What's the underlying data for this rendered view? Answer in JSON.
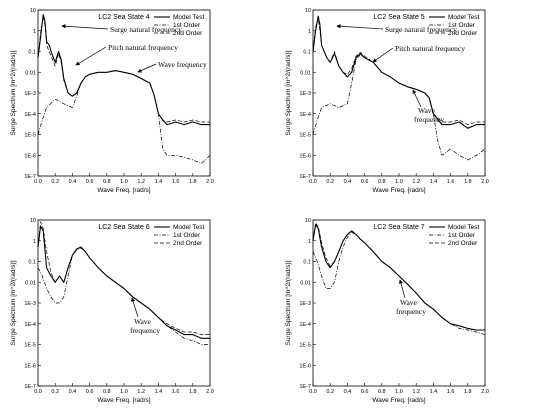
{
  "chart_data": [
    {
      "type": "line",
      "title": "LC2 Sea State 4",
      "xlabel": "Wave Freq. [rad/s]",
      "ylabel": "Surge Spectrum [m^2/(rad/s)]",
      "xlim": [
        0.0,
        2.0
      ],
      "ylim": [
        1e-07,
        10
      ],
      "yscale": "log",
      "xticks": [
        "0.0",
        "0.2",
        "0.4",
        "0.6",
        "0.8",
        "1.0",
        "1.2",
        "1.4",
        "1.6",
        "1.8",
        "2.0"
      ],
      "yticks": [
        "1E-7",
        "1E-6",
        "1E-5",
        "1E-4",
        "1E-3",
        "0.01",
        "0.1",
        "1",
        "10"
      ],
      "legend": "top-right",
      "annotations": [
        "Surge natural frequency",
        "Pitch natural frequency",
        "Wave frequency"
      ],
      "series": [
        {
          "name": "Model Test",
          "style": "solid",
          "x": [
            0.0,
            0.03,
            0.06,
            0.08,
            0.1,
            0.13,
            0.16,
            0.2,
            0.24,
            0.27,
            0.3,
            0.35,
            0.4,
            0.45,
            0.5,
            0.55,
            0.6,
            0.7,
            0.8,
            0.9,
            1.0,
            1.1,
            1.2,
            1.3,
            1.35,
            1.4,
            1.45,
            1.5,
            1.6,
            1.7,
            1.8,
            1.9,
            2.0
          ],
          "y": [
            0.05,
            0.5,
            6,
            3,
            0.3,
            0.2,
            0.08,
            0.03,
            0.1,
            0.04,
            0.005,
            0.001,
            0.0007,
            0.001,
            0.003,
            0.006,
            0.008,
            0.01,
            0.01,
            0.012,
            0.01,
            0.008,
            0.005,
            0.003,
            0.0008,
            0.0001,
            5e-05,
            3e-05,
            4e-05,
            3e-05,
            4e-05,
            3e-05,
            3e-05
          ]
        },
        {
          "name": "1st Order",
          "style": "dashdot",
          "x": [
            0.0,
            0.05,
            0.1,
            0.2,
            0.3,
            0.4,
            0.45,
            0.5,
            0.55,
            0.6,
            0.7,
            0.8,
            0.9,
            1.0,
            1.1,
            1.2,
            1.3,
            1.35,
            1.4,
            1.45,
            1.5,
            1.6,
            1.7,
            1.8,
            1.9,
            2.0
          ],
          "y": [
            1e-05,
            5e-05,
            0.0002,
            0.0005,
            0.0003,
            0.0002,
            0.0007,
            0.003,
            0.006,
            0.008,
            0.01,
            0.01,
            0.012,
            0.01,
            0.008,
            0.005,
            0.003,
            0.0008,
            0.0001,
            2e-06,
            1e-06,
            1e-06,
            8e-07,
            6e-07,
            4e-07,
            1e-06
          ]
        },
        {
          "name": "2nd Order",
          "style": "dashed",
          "x": [
            0.0,
            0.03,
            0.06,
            0.08,
            0.1,
            0.13,
            0.16,
            0.2,
            0.24,
            0.27,
            0.3,
            0.35,
            0.4,
            0.45,
            0.5,
            0.55,
            0.6,
            0.7,
            0.8,
            0.9,
            1.0,
            1.1,
            1.2,
            1.3,
            1.35,
            1.4,
            1.45,
            1.5,
            1.6,
            1.7,
            1.8,
            1.9,
            2.0
          ],
          "y": [
            0.05,
            0.8,
            5,
            2,
            0.2,
            0.1,
            0.05,
            0.02,
            0.08,
            0.03,
            0.004,
            0.001,
            0.0007,
            0.001,
            0.003,
            0.006,
            0.008,
            0.01,
            0.01,
            0.012,
            0.01,
            0.008,
            0.005,
            0.003,
            0.0008,
            0.0001,
            5e-05,
            4e-05,
            5e-05,
            4e-05,
            5e-05,
            4e-05,
            4e-05
          ]
        }
      ]
    },
    {
      "type": "line",
      "title": "LC2 Sea State 5",
      "xlabel": "Wave Freq. [rad/s]",
      "ylabel": "Surge Spectrum [m^2/(rad/s)]",
      "xlim": [
        0.0,
        2.0
      ],
      "ylim": [
        1e-07,
        10
      ],
      "yscale": "log",
      "xticks": [
        "0.0",
        "0.2",
        "0.4",
        "0.6",
        "0.8",
        "1.0",
        "1.2",
        "1.4",
        "1.6",
        "1.8",
        "2.0"
      ],
      "yticks": [
        "1E-7",
        "1E-6",
        "1E-5",
        "1E-4",
        "1E-3",
        "0.01",
        "0.1",
        "1",
        "10"
      ],
      "legend": "top-right",
      "annotations": [
        "Surge natural frequency",
        "Pitch natural frequency",
        "Wave frequency"
      ],
      "series": [
        {
          "name": "Model Test",
          "style": "solid",
          "x": [
            0.0,
            0.03,
            0.06,
            0.08,
            0.1,
            0.13,
            0.16,
            0.2,
            0.25,
            0.3,
            0.35,
            0.4,
            0.45,
            0.5,
            0.55,
            0.6,
            0.7,
            0.8,
            0.9,
            1.0,
            1.1,
            1.2,
            1.3,
            1.35,
            1.4,
            1.5,
            1.6,
            1.7,
            1.8,
            1.9,
            2.0
          ],
          "y": [
            0.1,
            1,
            5,
            2,
            0.2,
            0.1,
            0.05,
            0.03,
            0.08,
            0.02,
            0.01,
            0.006,
            0.01,
            0.05,
            0.08,
            0.05,
            0.03,
            0.01,
            0.006,
            0.003,
            0.002,
            0.0015,
            0.001,
            0.0006,
            0.0001,
            3e-05,
            3e-05,
            4e-05,
            2e-05,
            3e-05,
            3e-05
          ]
        },
        {
          "name": "1st Order",
          "style": "dashdot",
          "x": [
            0.0,
            0.05,
            0.1,
            0.2,
            0.3,
            0.4,
            0.45,
            0.5,
            0.55,
            0.6,
            0.7,
            0.8,
            0.9,
            1.0,
            1.1,
            1.2,
            1.3,
            1.35,
            1.4,
            1.45,
            1.5,
            1.6,
            1.7,
            1.8,
            1.9,
            2.0
          ],
          "y": [
            1e-05,
            5e-05,
            0.0002,
            0.0003,
            0.0002,
            0.0003,
            0.003,
            0.04,
            0.07,
            0.05,
            0.03,
            0.01,
            0.006,
            0.003,
            0.002,
            0.0015,
            0.001,
            0.0006,
            0.0001,
            5e-06,
            1e-06,
            2e-06,
            1e-06,
            6e-07,
            1e-06,
            2e-06
          ]
        },
        {
          "name": "2nd Order",
          "style": "dashed",
          "x": [
            0.0,
            0.03,
            0.06,
            0.08,
            0.1,
            0.13,
            0.16,
            0.2,
            0.25,
            0.3,
            0.35,
            0.4,
            0.45,
            0.5,
            0.55,
            0.6,
            0.7,
            0.8,
            0.9,
            1.0,
            1.1,
            1.2,
            1.3,
            1.35,
            1.4,
            1.5,
            1.6,
            1.7,
            1.8,
            1.9,
            2.0
          ],
          "y": [
            0.1,
            1.5,
            4,
            1,
            0.2,
            0.1,
            0.05,
            0.03,
            0.1,
            0.02,
            0.01,
            0.008,
            0.015,
            0.06,
            0.09,
            0.06,
            0.03,
            0.01,
            0.006,
            0.003,
            0.002,
            0.0015,
            0.001,
            0.0006,
            0.0001,
            4e-05,
            4e-05,
            5e-05,
            3e-05,
            4e-05,
            4e-05
          ]
        }
      ]
    },
    {
      "type": "line",
      "title": "LC2 Sea State 6",
      "xlabel": "Wave Freq. [rad/s]",
      "ylabel": "Surge Spectrum [m^2/(rad/s)]",
      "xlim": [
        0.0,
        2.0
      ],
      "ylim": [
        1e-07,
        10
      ],
      "yscale": "log",
      "xticks": [
        "0.0",
        "0.2",
        "0.4",
        "0.6",
        "0.8",
        "1.0",
        "1.2",
        "1.4",
        "1.6",
        "1.8",
        "2.0"
      ],
      "yticks": [
        "1E-7",
        "1E-6",
        "1E-5",
        "1E-4",
        "1E-3",
        "0.01",
        "0.1",
        "1",
        "10"
      ],
      "legend": "top-right",
      "annotations": [
        "Wave frequency"
      ],
      "series": [
        {
          "name": "Model Test",
          "style": "solid",
          "x": [
            0.0,
            0.03,
            0.06,
            0.1,
            0.15,
            0.2,
            0.25,
            0.3,
            0.35,
            0.4,
            0.45,
            0.5,
            0.55,
            0.6,
            0.7,
            0.8,
            0.9,
            1.0,
            1.1,
            1.2,
            1.3,
            1.4,
            1.5,
            1.6,
            1.7,
            1.8,
            1.9,
            2.0
          ],
          "y": [
            0.5,
            5,
            3,
            0.05,
            0.02,
            0.01,
            0.02,
            0.01,
            0.05,
            0.2,
            0.4,
            0.5,
            0.3,
            0.15,
            0.05,
            0.02,
            0.01,
            0.005,
            0.002,
            0.001,
            0.0005,
            0.0002,
            8e-05,
            5e-05,
            3e-05,
            3e-05,
            2e-05,
            2e-05
          ]
        },
        {
          "name": "1st Order",
          "style": "dashdot",
          "x": [
            0.0,
            0.05,
            0.1,
            0.15,
            0.2,
            0.25,
            0.3,
            0.35,
            0.4,
            0.45,
            0.5,
            0.55,
            0.6,
            0.7,
            0.8,
            0.9,
            1.0,
            1.1,
            1.2,
            1.3,
            1.4,
            1.5,
            1.6,
            1.7,
            1.8,
            1.9,
            2.0
          ],
          "y": [
            0.05,
            0.02,
            0.005,
            0.002,
            0.001,
            0.001,
            0.002,
            0.02,
            0.2,
            0.35,
            0.45,
            0.3,
            0.15,
            0.05,
            0.02,
            0.01,
            0.005,
            0.002,
            0.001,
            0.0005,
            0.0002,
            8e-05,
            4e-05,
            2e-05,
            1.5e-05,
            1e-05,
            1e-05
          ]
        },
        {
          "name": "2nd Order",
          "style": "dashed",
          "x": [
            0.0,
            0.03,
            0.06,
            0.1,
            0.15,
            0.2,
            0.25,
            0.3,
            0.35,
            0.4,
            0.45,
            0.5,
            0.55,
            0.6,
            0.7,
            0.8,
            0.9,
            1.0,
            1.1,
            1.2,
            1.3,
            1.4,
            1.5,
            1.6,
            1.7,
            1.8,
            1.9,
            2.0
          ],
          "y": [
            0.5,
            8,
            4,
            0.3,
            0.03,
            0.01,
            0.02,
            0.01,
            0.05,
            0.2,
            0.4,
            0.5,
            0.3,
            0.15,
            0.05,
            0.02,
            0.01,
            0.005,
            0.002,
            0.001,
            0.0005,
            0.0002,
            0.0001,
            6e-05,
            4e-05,
            4e-05,
            3e-05,
            3e-05
          ]
        }
      ]
    },
    {
      "type": "line",
      "title": "LC2 Sea State 7",
      "xlabel": "Wave Freq. [rad/s]",
      "ylabel": "Surge Spectrum [m^2/(rad/s)]",
      "xlim": [
        0.0,
        2.0
      ],
      "ylim": [
        1e-07,
        10
      ],
      "yscale": "log",
      "xticks": [
        "0.0",
        "0.2",
        "0.4",
        "0.6",
        "0.8",
        "1.0",
        "1.2",
        "1.4",
        "1.6",
        "1.8",
        "2.0"
      ],
      "yticks": [
        "1E-7",
        "1E-6",
        "1E-5",
        "1E-4",
        "1E-3",
        "0.01",
        "0.1",
        "1",
        "10"
      ],
      "legend": "top-right",
      "annotations": [
        "Wave frequency"
      ],
      "series": [
        {
          "name": "Model Test",
          "style": "solid",
          "x": [
            0.0,
            0.03,
            0.06,
            0.1,
            0.15,
            0.2,
            0.25,
            0.3,
            0.35,
            0.4,
            0.45,
            0.5,
            0.55,
            0.6,
            0.7,
            0.8,
            0.9,
            1.0,
            1.1,
            1.2,
            1.3,
            1.4,
            1.5,
            1.6,
            1.7,
            1.8,
            1.9,
            2.0
          ],
          "y": [
            1,
            6,
            4,
            0.5,
            0.1,
            0.05,
            0.1,
            0.3,
            1,
            2,
            3,
            2,
            1.2,
            0.8,
            0.3,
            0.1,
            0.05,
            0.02,
            0.008,
            0.003,
            0.001,
            0.0005,
            0.0002,
            0.0001,
            8e-05,
            6e-05,
            5e-05,
            5e-05
          ]
        },
        {
          "name": "1st Order",
          "style": "dashdot",
          "x": [
            0.0,
            0.05,
            0.1,
            0.15,
            0.2,
            0.25,
            0.3,
            0.35,
            0.4,
            0.45,
            0.5,
            0.55,
            0.6,
            0.7,
            0.8,
            0.9,
            1.0,
            1.1,
            1.2,
            1.3,
            1.4,
            1.5,
            1.6,
            1.7,
            1.8,
            1.9,
            2.0
          ],
          "y": [
            0.3,
            0.1,
            0.02,
            0.005,
            0.005,
            0.01,
            0.1,
            0.5,
            1.5,
            2.5,
            2,
            1.2,
            0.8,
            0.3,
            0.1,
            0.05,
            0.02,
            0.008,
            0.003,
            0.001,
            0.0005,
            0.0002,
            0.0001,
            6e-05,
            5e-05,
            4e-05,
            3e-05
          ]
        },
        {
          "name": "2nd Order",
          "style": "dashed",
          "x": [
            0.0,
            0.03,
            0.06,
            0.1,
            0.15,
            0.2,
            0.25,
            0.3,
            0.35,
            0.4,
            0.45,
            0.5,
            0.55,
            0.6,
            0.7,
            0.8,
            0.9,
            1.0,
            1.1,
            1.2,
            1.3,
            1.4,
            1.5,
            1.6,
            1.7,
            1.8,
            1.9,
            2.0
          ],
          "y": [
            1,
            7,
            5,
            0.8,
            0.15,
            0.06,
            0.1,
            0.3,
            1,
            2,
            3,
            2,
            1.2,
            0.8,
            0.3,
            0.1,
            0.05,
            0.02,
            0.008,
            0.003,
            0.001,
            0.0005,
            0.0002,
            0.0001,
            8e-05,
            6e-05,
            5e-05,
            5e-05
          ]
        }
      ]
    }
  ]
}
